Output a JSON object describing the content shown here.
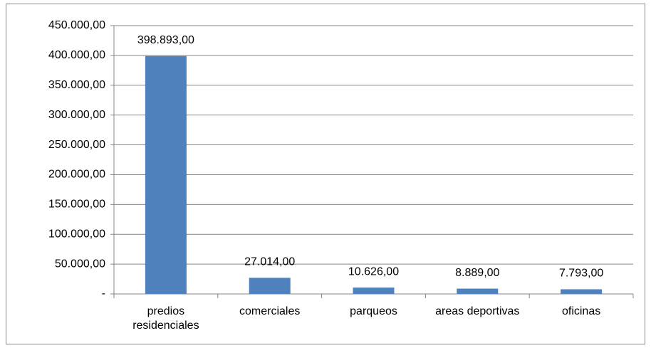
{
  "chart_data": {
    "type": "bar",
    "categories": [
      "predios residenciales",
      "comerciales",
      "parqueos",
      "areas deportivas",
      "oficinas"
    ],
    "values": [
      398893,
      27014,
      10626,
      8889,
      7793
    ],
    "value_labels": [
      "398.893,00",
      "27.014,00",
      "10.626,00",
      "8.889,00",
      "7.793,00"
    ],
    "color": "#4f81bd",
    "ylim": [
      0,
      450000
    ],
    "yticks": [
      {
        "value": 0,
        "label": "-"
      },
      {
        "value": 50000,
        "label": "50.000,00"
      },
      {
        "value": 100000,
        "label": "100.000,00"
      },
      {
        "value": 150000,
        "label": "150.000,00"
      },
      {
        "value": 200000,
        "label": "200.000,00"
      },
      {
        "value": 250000,
        "label": "250.000,00"
      },
      {
        "value": 300000,
        "label": "300.000,00"
      },
      {
        "value": 350000,
        "label": "350.000,00"
      },
      {
        "value": 400000,
        "label": "400.000,00"
      },
      {
        "value": 450000,
        "label": "450.000,00"
      }
    ],
    "grid": true
  }
}
